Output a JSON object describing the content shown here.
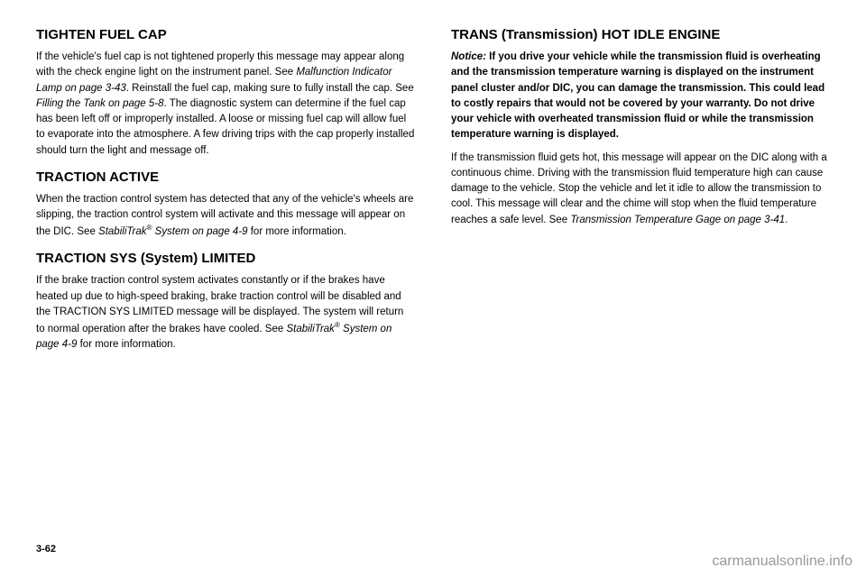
{
  "left": {
    "heading1": "TIGHTEN FUEL CAP",
    "para1_part1": "If the vehicle's fuel cap is not tightened properly this message may appear along with the check engine light on the instrument panel. See ",
    "para1_ref1": "Malfunction Indicator Lamp on page 3-43",
    "para1_part2": ". Reinstall the fuel cap, making sure to fully install the cap. See ",
    "para1_ref2": "Filling the Tank on page 5-8",
    "para1_part3": ". The diagnostic system can determine if the fuel cap has been left off or improperly installed. A loose or missing fuel cap will allow fuel to evaporate into the atmosphere. A few driving trips with the cap properly installed should turn the light and message off.",
    "heading2": "TRACTION ACTIVE",
    "para2_part1": "When the traction control system has detected that any of the vehicle's wheels are slipping, the traction control system will activate and this message will appear on the DIC. See ",
    "para2_ref1": "StabiliTrak",
    "para2_ref1_suffix": " System on page 4-9",
    "para2_part2": " for more information.",
    "heading3": "TRACTION SYS (System) LIMITED",
    "para3_part1": "If the brake traction control system activates constantly or if the brakes have heated up due to high-speed braking, brake traction control will be disabled and the TRACTION SYS LIMITED message will be displayed. The system will return to normal operation after the brakes have cooled. See ",
    "para3_ref1": "StabiliTrak",
    "para3_ref1_suffix": " System on page 4-9",
    "para3_part2": " for more information."
  },
  "right": {
    "heading1": "TRANS (Transmission) HOT IDLE ENGINE",
    "notice_label": "Notice:",
    "notice_text": " If you drive your vehicle while the transmission fluid is overheating and the transmission temperature warning is displayed on the instrument panel cluster and/or DIC, you can damage the transmission. This could lead to costly repairs that would not be covered by your warranty. Do not drive your vehicle with overheated transmission fluid or while the transmission temperature warning is displayed.",
    "para2_part1": "If the transmission fluid gets hot, this message will appear on the DIC along with a continuous chime. Driving with the transmission fluid temperature high can cause damage to the vehicle. Stop the vehicle and let it idle to allow the transmission to cool. This message will clear and the chime will stop when the fluid temperature reaches a safe level. See ",
    "para2_ref1": "Transmission Temperature Gage on page 3-41",
    "para2_part2": "."
  },
  "pageNumber": "3-62",
  "watermark": "carmanualsonline.info"
}
